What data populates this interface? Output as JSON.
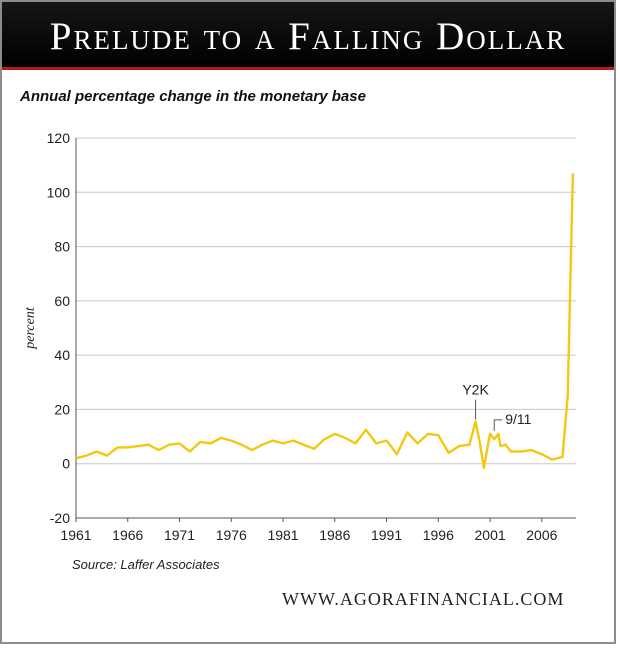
{
  "header": {
    "title": "Prelude to a Falling Dollar"
  },
  "footer": {
    "source": "Source: Laffer Associates",
    "website": "WWW.AGORAFINANCIAL.COM"
  },
  "chart_data": {
    "type": "line",
    "title": "Annual percentage change in the monetary base",
    "xlabel": "",
    "ylabel": "percent",
    "xlim": [
      1961,
      2009.3
    ],
    "ylim": [
      -20,
      120
    ],
    "yticks": [
      -20,
      0,
      20,
      40,
      60,
      80,
      100,
      120
    ],
    "xticks": [
      1961,
      1966,
      1971,
      1976,
      1981,
      1986,
      1991,
      1996,
      2001,
      2006
    ],
    "grid": "horizontal",
    "series_color": "#f2c811",
    "series": [
      {
        "x": [
          1961,
          1962,
          1963,
          1964,
          1965,
          1966,
          1967,
          1968,
          1969,
          1970,
          1971,
          1972,
          1973,
          1974,
          1975,
          1976,
          1977,
          1978,
          1979,
          1980,
          1981,
          1982,
          1983,
          1984,
          1985,
          1986,
          1987,
          1988,
          1989,
          1990,
          1991,
          1992,
          1993,
          1994,
          1995,
          1996,
          1997,
          1998,
          1999,
          1999.6,
          2000,
          2000.4,
          2000.8,
          2001,
          2001.4,
          2001.8,
          2002,
          2002.5,
          2003,
          2004,
          2005,
          2006,
          2007,
          2008,
          2008.5,
          2009
        ],
        "y": [
          2,
          3,
          4.5,
          3,
          6,
          6,
          6.5,
          7,
          5,
          7,
          7.5,
          4.5,
          8,
          7.5,
          9.5,
          8.5,
          7,
          5,
          7,
          8.5,
          7.5,
          8.5,
          7,
          5.5,
          9,
          11,
          9.5,
          7.5,
          12.5,
          7.5,
          8.5,
          3.5,
          11.5,
          7.5,
          11,
          10.5,
          4,
          6.5,
          7,
          15.5,
          8,
          -1.5,
          7,
          11,
          9,
          11,
          6.5,
          7,
          4.5,
          4.5,
          5,
          3.5,
          1.5,
          2.5,
          25,
          107
        ]
      }
    ],
    "annotations": [
      {
        "text": "Y2K",
        "x": 1999.6,
        "y": 15.5
      },
      {
        "text": "9/11",
        "x": 2001.4,
        "y": 11
      }
    ]
  }
}
